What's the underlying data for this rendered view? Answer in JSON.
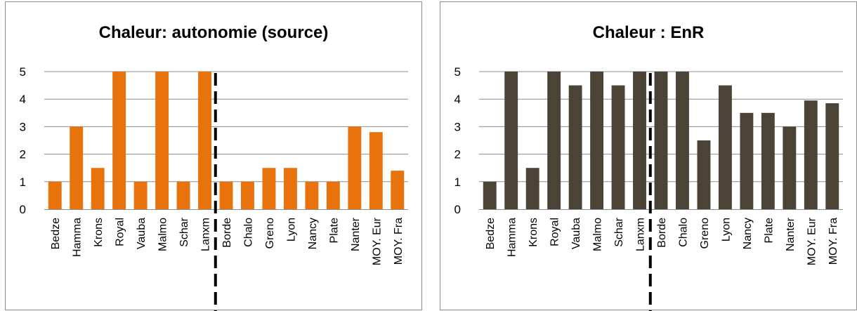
{
  "chart_data": [
    {
      "type": "bar",
      "title": "Chaleur: autonomie (source)",
      "categories": [
        "Bedze",
        "Hamma",
        "Krons",
        "Royal",
        "Vauba",
        "Malmo",
        "Schar",
        "Lanxm",
        "Borde",
        "Chalo",
        "Greno",
        "Lyon",
        "Nancy",
        "Plate",
        "Nanter",
        "MOY. Eur",
        "MOY. Fra"
      ],
      "values": [
        1,
        3,
        1.5,
        5,
        1,
        5,
        1,
        5,
        1,
        1,
        1.5,
        1.5,
        1,
        1,
        3,
        2.8,
        1.4
      ],
      "ylim": [
        0,
        5
      ],
      "yticks": [
        "0",
        "1",
        "2",
        "3",
        "4",
        "5"
      ],
      "grid": true,
      "bar_color": "#e8720c",
      "divider_after_index": 7
    },
    {
      "type": "bar",
      "title": "Chaleur : EnR",
      "categories": [
        "Bedze",
        "Hamma",
        "Krons",
        "Royal",
        "Vauba",
        "Malmo",
        "Schar",
        "Lanxm",
        "Borde",
        "Chalo",
        "Greno",
        "Lyon",
        "Nancy",
        "Plate",
        "Nanter",
        "MOY. Eur",
        "MOY. Fra"
      ],
      "values": [
        1,
        5,
        1.5,
        5,
        4.5,
        5,
        4.5,
        5,
        5,
        5,
        2.5,
        4.5,
        3.5,
        3.5,
        3,
        3.95,
        3.85
      ],
      "ylim": [
        0,
        5
      ],
      "yticks": [
        "0",
        "1",
        "2",
        "3",
        "4",
        "5"
      ],
      "grid": true,
      "bar_color": "#4a4336",
      "divider_after_index": 7
    }
  ]
}
